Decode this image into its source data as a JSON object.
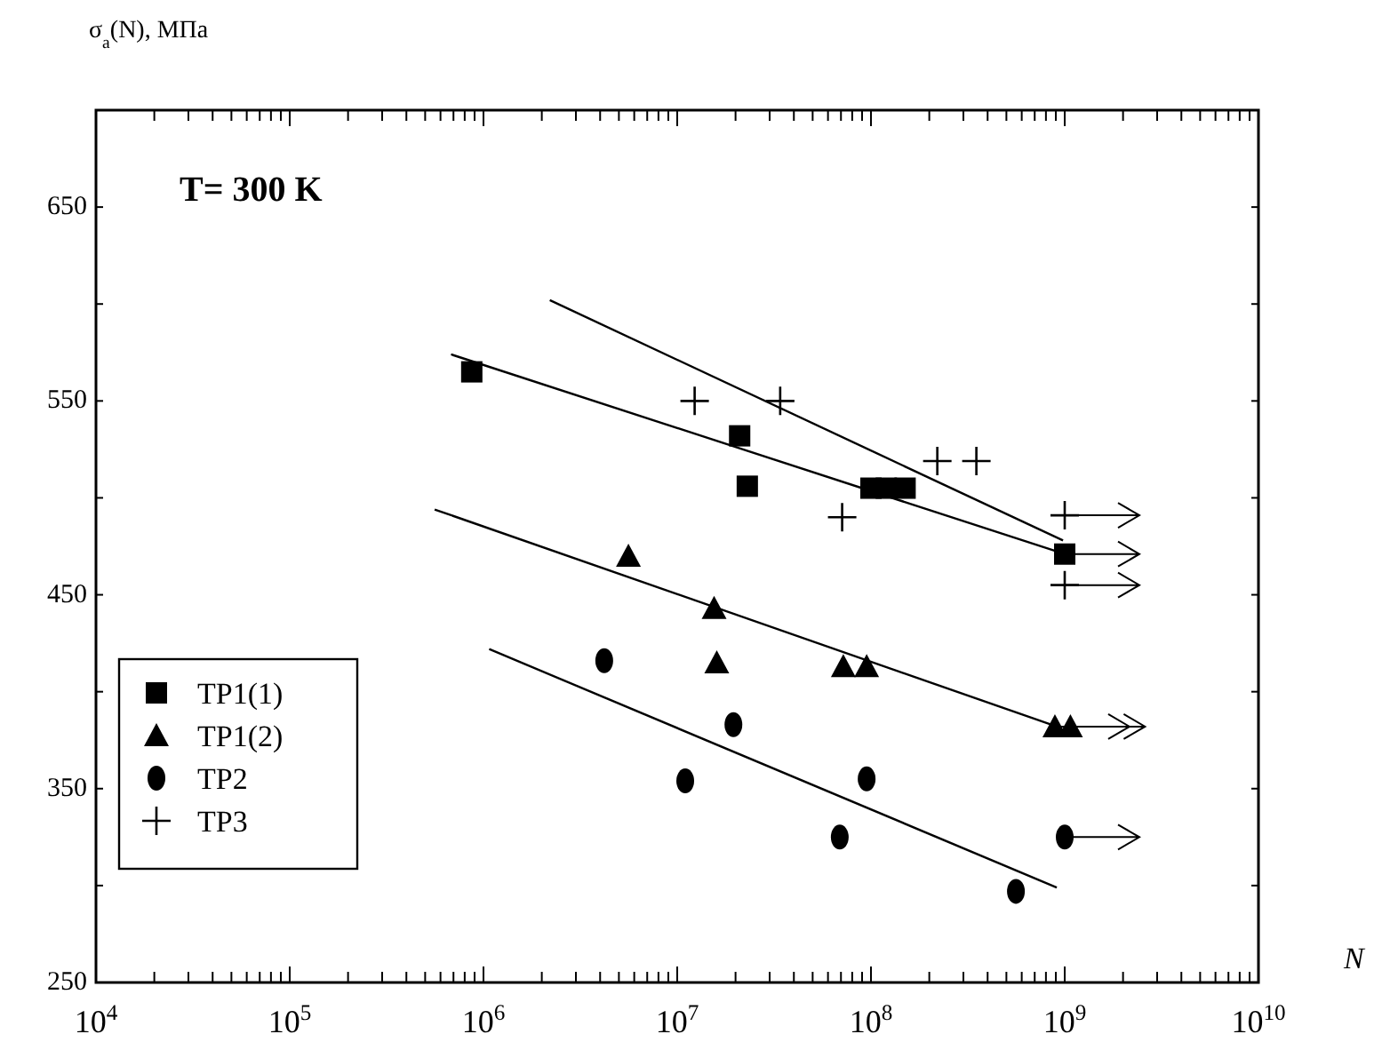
{
  "chart_data": {
    "type": "scatter",
    "ylabel": "σ$_{a}$(N), МПа",
    "xlabel": "N",
    "annotations": [
      "T= 300 K"
    ],
    "log": "x",
    "xlim": [
      10000,
      10000000000
    ],
    "ylim": [
      250,
      700
    ],
    "xticks": [
      {
        "value": 10000,
        "label": "10$^{4}$"
      },
      {
        "value": 20000,
        "label": null
      },
      {
        "value": 30000,
        "label": null
      },
      {
        "value": 40000,
        "label": null
      },
      {
        "value": 50000,
        "label": null
      },
      {
        "value": 60000,
        "label": null
      },
      {
        "value": 70000,
        "label": null
      },
      {
        "value": 80000,
        "label": null
      },
      {
        "value": 90000,
        "label": null
      },
      {
        "value": 100000,
        "label": "10$^{5}$"
      },
      {
        "value": 200000,
        "label": null
      },
      {
        "value": 300000,
        "label": null
      },
      {
        "value": 400000,
        "label": null
      },
      {
        "value": 500000,
        "label": null
      },
      {
        "value": 600000,
        "label": null
      },
      {
        "value": 700000,
        "label": null
      },
      {
        "value": 800000,
        "label": null
      },
      {
        "value": 900000,
        "label": null
      },
      {
        "value": 1000000,
        "label": "10$^{6}$"
      },
      {
        "value": 2000000,
        "label": null
      },
      {
        "value": 3000000,
        "label": null
      },
      {
        "value": 4000000,
        "label": null
      },
      {
        "value": 5000000,
        "label": null
      },
      {
        "value": 6000000,
        "label": null
      },
      {
        "value": 7000000,
        "label": null
      },
      {
        "value": 8000000,
        "label": null
      },
      {
        "value": 9000000,
        "label": null
      },
      {
        "value": 10000000,
        "label": "10$^{7}$"
      },
      {
        "value": 20000000,
        "label": null
      },
      {
        "value": 30000000,
        "label": null
      },
      {
        "value": 40000000,
        "label": null
      },
      {
        "value": 50000000,
        "label": null
      },
      {
        "value": 60000000,
        "label": null
      },
      {
        "value": 70000000,
        "label": null
      },
      {
        "value": 80000000,
        "label": null
      },
      {
        "value": 90000000,
        "label": null
      },
      {
        "value": 100000000,
        "label": "10$^{8}$"
      },
      {
        "value": 200000000,
        "label": null
      },
      {
        "value": 300000000,
        "label": null
      },
      {
        "value": 400000000,
        "label": null
      },
      {
        "value": 500000000,
        "label": null
      },
      {
        "value": 600000000,
        "label": null
      },
      {
        "value": 700000000,
        "label": null
      },
      {
        "value": 800000000,
        "label": null
      },
      {
        "value": 900000000,
        "label": null
      },
      {
        "value": 1000000000,
        "label": "10$^{9}$"
      },
      {
        "value": 2000000000,
        "label": null
      },
      {
        "value": 3000000000,
        "label": null
      },
      {
        "value": 4000000000,
        "label": null
      },
      {
        "value": 5000000000,
        "label": null
      },
      {
        "value": 6000000000,
        "label": null
      },
      {
        "value": 7000000000,
        "label": null
      },
      {
        "value": 8000000000,
        "label": null
      },
      {
        "value": 9000000000,
        "label": null
      },
      {
        "value": 10000000000,
        "label": "10$^{10}$"
      }
    ],
    "yticks": [
      250,
      {
        "value": 300,
        "label": null
      },
      350,
      {
        "value": 400,
        "label": null
      },
      450,
      {
        "value": 500,
        "label": null
      },
      550,
      {
        "value": 600,
        "label": null
      },
      650
    ],
    "grid": false,
    "legend": "bottom left",
    "series": [
      {
        "name": "TP1(1)",
        "marker": "square",
        "color": "#000000",
        "x": [
          870000,
          21000000,
          23000000,
          100000000,
          120000000,
          150000000,
          1000000000
        ],
        "values": [
          565,
          532,
          506,
          505,
          505,
          505,
          471
        ]
      },
      {
        "name": "TP1(2)",
        "marker": "triangle",
        "color": "#000000",
        "x": [
          5600000,
          15500000,
          16000000,
          72000000,
          95000000,
          890000000,
          1070000000
        ],
        "values": [
          470,
          443,
          415,
          413,
          413,
          382,
          382
        ]
      },
      {
        "name": "TP2",
        "marker": "circle",
        "color": "#000000",
        "x": [
          4200000,
          11000000,
          19500000,
          95000000,
          69000000,
          560000000,
          1000000000
        ],
        "values": [
          416,
          354,
          383,
          355,
          325,
          297,
          325
        ]
      },
      {
        "name": "TP3",
        "marker": "cross",
        "color": "#000000",
        "x": [
          12300000,
          34000000,
          220000000,
          350000000,
          71000000,
          1000000000,
          1000000000
        ],
        "values": [
          550,
          550,
          519,
          519,
          490,
          491,
          455
        ]
      },
      {
        "type": "line",
        "marker": "none",
        "color": "#000000",
        "x": [
          680000,
          1000000000
        ],
        "values": [
          574,
          471
        ]
      },
      {
        "type": "line",
        "marker": "none",
        "color": "#000000",
        "x": [
          2200000,
          980000000
        ],
        "values": [
          602,
          478
        ]
      },
      {
        "type": "line",
        "marker": "none",
        "color": "#000000",
        "x": [
          560000,
          910000000
        ],
        "values": [
          494,
          382
        ]
      },
      {
        "type": "line",
        "marker": "none",
        "color": "#000000",
        "x": [
          1070000,
          910000000
        ],
        "values": [
          422,
          299
        ]
      }
    ]
  }
}
